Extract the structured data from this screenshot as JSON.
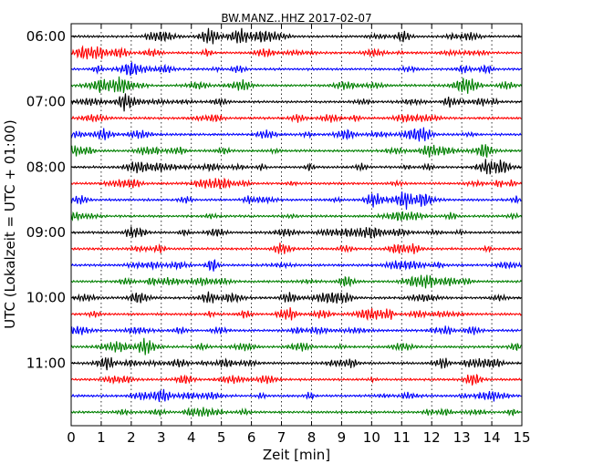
{
  "chart_data": {
    "type": "line",
    "title": "BW.MANZ..HHZ 2017-02-07",
    "xlabel": "Zeit  [min]",
    "ylabel": "UTC (Lokalzeit = UTC + 01:00)",
    "xlim": [
      0,
      15
    ],
    "x_ticks": [
      "0",
      "1",
      "2",
      "3",
      "4",
      "5",
      "6",
      "7",
      "8",
      "9",
      "10",
      "11",
      "12",
      "13",
      "14",
      "15"
    ],
    "y_tick_labels": [
      "06:00",
      "07:00",
      "08:00",
      "09:00",
      "10:00",
      "11:00"
    ],
    "grid": true,
    "grid_axis": "x",
    "row_interval_minutes": 15,
    "rows": [
      {
        "start": "06:00",
        "color": "#000000"
      },
      {
        "start": "06:15",
        "color": "#ff0000"
      },
      {
        "start": "06:30",
        "color": "#0000ff"
      },
      {
        "start": "06:45",
        "color": "#008000"
      },
      {
        "start": "07:00",
        "color": "#000000"
      },
      {
        "start": "07:15",
        "color": "#ff0000"
      },
      {
        "start": "07:30",
        "color": "#0000ff"
      },
      {
        "start": "07:45",
        "color": "#008000"
      },
      {
        "start": "08:00",
        "color": "#000000"
      },
      {
        "start": "08:15",
        "color": "#ff0000"
      },
      {
        "start": "08:30",
        "color": "#0000ff"
      },
      {
        "start": "08:45",
        "color": "#008000"
      },
      {
        "start": "09:00",
        "color": "#000000"
      },
      {
        "start": "09:15",
        "color": "#ff0000"
      },
      {
        "start": "09:30",
        "color": "#0000ff"
      },
      {
        "start": "09:45",
        "color": "#008000"
      },
      {
        "start": "10:00",
        "color": "#000000"
      },
      {
        "start": "10:15",
        "color": "#ff0000"
      },
      {
        "start": "10:30",
        "color": "#0000ff"
      },
      {
        "start": "10:45",
        "color": "#008000"
      },
      {
        "start": "11:00",
        "color": "#000000"
      },
      {
        "start": "11:15",
        "color": "#ff0000"
      },
      {
        "start": "11:30",
        "color": "#0000ff"
      },
      {
        "start": "11:45",
        "color": "#008000"
      }
    ]
  }
}
